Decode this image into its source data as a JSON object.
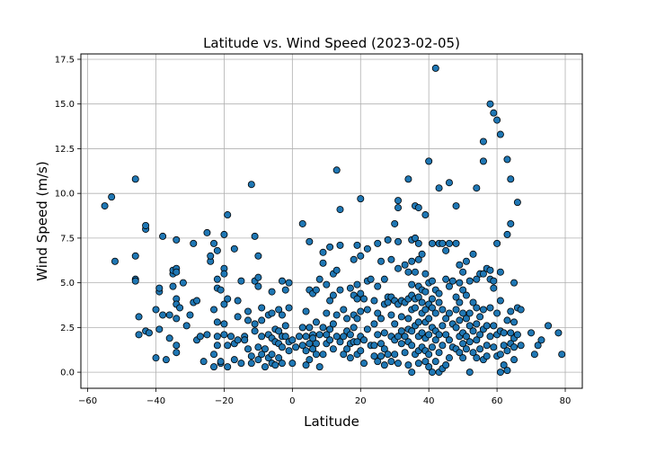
{
  "chart_data": {
    "type": "scatter",
    "title": "Latitude vs. Wind Speed (2023-02-05)",
    "xlabel": "Latitude",
    "ylabel": "Wind Speed (m/s)",
    "xlim": [
      -62,
      85
    ],
    "ylim": [
      -0.9,
      17.8
    ],
    "xticks": [
      -60,
      -40,
      -20,
      0,
      20,
      40,
      60,
      80
    ],
    "yticks": [
      0.0,
      2.5,
      5.0,
      7.5,
      10.0,
      12.5,
      15.0,
      17.5
    ],
    "xtick_labels": [
      "−60",
      "−40",
      "−20",
      "0",
      "20",
      "40",
      "60",
      "80"
    ],
    "ytick_labels": [
      "0.0",
      "2.5",
      "5.0",
      "7.5",
      "10.0",
      "12.5",
      "15.0",
      "17.5"
    ],
    "grid": true,
    "marker_color": "#1f77b4",
    "marker_edge_color": "#000000",
    "points": [
      [
        -55,
        9.3
      ],
      [
        -53,
        9.8
      ],
      [
        -52,
        6.2
      ],
      [
        -46,
        10.8
      ],
      [
        -46,
        6.5
      ],
      [
        -46,
        5.2
      ],
      [
        -46,
        5.1
      ],
      [
        -45,
        3.1
      ],
      [
        -45,
        2.1
      ],
      [
        -43,
        8.0
      ],
      [
        -43,
        8.2
      ],
      [
        -43,
        2.3
      ],
      [
        -42,
        2.2
      ],
      [
        -40,
        3.5
      ],
      [
        -40,
        0.8
      ],
      [
        -39,
        2.4
      ],
      [
        -39,
        4.5
      ],
      [
        -39,
        4.7
      ],
      [
        -38,
        7.6
      ],
      [
        -38,
        3.2
      ],
      [
        -37,
        0.7
      ],
      [
        -36,
        3.2
      ],
      [
        -36,
        1.9
      ],
      [
        -35,
        5.5
      ],
      [
        -35,
        5.7
      ],
      [
        -35,
        4.8
      ],
      [
        -34,
        7.4
      ],
      [
        -34,
        5.8
      ],
      [
        -34,
        5.6
      ],
      [
        -34,
        4.1
      ],
      [
        -34,
        3.8
      ],
      [
        -34,
        3.0
      ],
      [
        -34,
        1.5
      ],
      [
        -34,
        1.1
      ],
      [
        -33,
        3.6
      ],
      [
        -32,
        5.0
      ],
      [
        -31,
        2.6
      ],
      [
        -30,
        3.2
      ],
      [
        -29,
        7.2
      ],
      [
        -29,
        3.9
      ],
      [
        -28,
        4.0
      ],
      [
        -28,
        1.8
      ],
      [
        -27,
        2.0
      ],
      [
        -26,
        0.6
      ],
      [
        -25,
        7.8
      ],
      [
        -25,
        2.1
      ],
      [
        -24,
        6.2
      ],
      [
        -24,
        6.5
      ],
      [
        -23,
        7.2
      ],
      [
        -23,
        1.0
      ],
      [
        -23,
        3.5
      ],
      [
        -23,
        0.3
      ],
      [
        -22,
        6.8
      ],
      [
        -22,
        5.2
      ],
      [
        -22,
        4.7
      ],
      [
        -22,
        2.8
      ],
      [
        -22,
        2.0
      ],
      [
        -22,
        1.5
      ],
      [
        -21,
        4.6
      ],
      [
        -21,
        0.5
      ],
      [
        -21,
        0.6
      ],
      [
        -20,
        7.7
      ],
      [
        -20,
        5.8
      ],
      [
        -20,
        5.5
      ],
      [
        -20,
        3.8
      ],
      [
        -20,
        2.7
      ],
      [
        -20,
        2.1
      ],
      [
        -19,
        8.8
      ],
      [
        -19,
        4.1
      ],
      [
        -19,
        1.5
      ],
      [
        -19,
        0.3
      ],
      [
        -18,
        2.0
      ],
      [
        -17,
        6.9
      ],
      [
        -17,
        1.6
      ],
      [
        -17,
        0.7
      ],
      [
        -16,
        4.0
      ],
      [
        -16,
        3.1
      ],
      [
        -16,
        1.8
      ],
      [
        -15,
        5.1
      ],
      [
        -15,
        0.5
      ],
      [
        -14,
        2.0
      ],
      [
        -14,
        1.8
      ],
      [
        -13,
        3.4
      ],
      [
        -13,
        2.9
      ],
      [
        -13,
        1.3
      ],
      [
        -12,
        10.5
      ],
      [
        -12,
        0.5
      ],
      [
        -12,
        0.9
      ],
      [
        -11,
        7.6
      ],
      [
        -11,
        5.1
      ],
      [
        -11,
        2.7
      ],
      [
        -11,
        2.3
      ],
      [
        -10,
        6.5
      ],
      [
        -10,
        5.3
      ],
      [
        -10,
        4.8
      ],
      [
        -10,
        1.4
      ],
      [
        -10,
        0.7
      ],
      [
        -9,
        3.6
      ],
      [
        -9,
        2.9
      ],
      [
        -9,
        2.0
      ],
      [
        -9,
        1.0
      ],
      [
        -8,
        0.3
      ],
      [
        -8,
        1.3
      ],
      [
        -7,
        3.2
      ],
      [
        -7,
        2.1
      ],
      [
        -7,
        0.8
      ],
      [
        -6,
        4.5
      ],
      [
        -6,
        3.3
      ],
      [
        -6,
        1.9
      ],
      [
        -6,
        1.0
      ],
      [
        -6,
        0.5
      ],
      [
        -5,
        2.4
      ],
      [
        -5,
        1.7
      ],
      [
        -5,
        0.4
      ],
      [
        -4,
        3.5
      ],
      [
        -4,
        2.3
      ],
      [
        -4,
        1.6
      ],
      [
        -4,
        0.8
      ],
      [
        -3,
        5.1
      ],
      [
        -3,
        3.2
      ],
      [
        -3,
        2.0
      ],
      [
        -3,
        1.4
      ],
      [
        -3,
        0.5
      ],
      [
        -2,
        4.6
      ],
      [
        -2,
        2.6
      ],
      [
        -2,
        2.0
      ],
      [
        -1,
        5.0
      ],
      [
        -1,
        3.6
      ],
      [
        -1,
        1.7
      ],
      [
        -1,
        1.2
      ],
      [
        0,
        1.8
      ],
      [
        0,
        0.5
      ],
      [
        1,
        1.4
      ],
      [
        2,
        2.0
      ],
      [
        3,
        8.3
      ],
      [
        3,
        2.5
      ],
      [
        3,
        1.5
      ],
      [
        4,
        3.4
      ],
      [
        4,
        2.0
      ],
      [
        4,
        1.2
      ],
      [
        4,
        0.4
      ],
      [
        5,
        7.3
      ],
      [
        5,
        4.6
      ],
      [
        5,
        2.5
      ],
      [
        5,
        1.6
      ],
      [
        5,
        0.7
      ],
      [
        6,
        4.4
      ],
      [
        6,
        2.1
      ],
      [
        6,
        1.9
      ],
      [
        6,
        1.3
      ],
      [
        7,
        4.6
      ],
      [
        7,
        2.8
      ],
      [
        7,
        1.6
      ],
      [
        7,
        1.0
      ],
      [
        8,
        5.2
      ],
      [
        8,
        2.1
      ],
      [
        8,
        0.3
      ],
      [
        9,
        6.7
      ],
      [
        9,
        6.1
      ],
      [
        9,
        2.5
      ],
      [
        9,
        1.0
      ],
      [
        10,
        4.9
      ],
      [
        10,
        3.3
      ],
      [
        10,
        2.1
      ],
      [
        10,
        1.6
      ],
      [
        11,
        7.0
      ],
      [
        11,
        4.0
      ],
      [
        11,
        2.4
      ],
      [
        11,
        1.8
      ],
      [
        12,
        5.5
      ],
      [
        12,
        4.3
      ],
      [
        12,
        2.7
      ],
      [
        12,
        1.3
      ],
      [
        13,
        11.3
      ],
      [
        13,
        5.7
      ],
      [
        13,
        3.2
      ],
      [
        13,
        2.0
      ],
      [
        14,
        9.1
      ],
      [
        14,
        7.1
      ],
      [
        14,
        4.6
      ],
      [
        14,
        1.7
      ],
      [
        15,
        3.5
      ],
      [
        15,
        2.0
      ],
      [
        15,
        1.0
      ],
      [
        16,
        3.0
      ],
      [
        16,
        2.3
      ],
      [
        16,
        1.3
      ],
      [
        17,
        4.7
      ],
      [
        17,
        2.1
      ],
      [
        17,
        1.6
      ],
      [
        17,
        0.8
      ],
      [
        18,
        6.3
      ],
      [
        18,
        4.3
      ],
      [
        18,
        3.2
      ],
      [
        18,
        2.5
      ],
      [
        18,
        1.7
      ],
      [
        19,
        7.1
      ],
      [
        19,
        4.9
      ],
      [
        19,
        4.1
      ],
      [
        19,
        3.0
      ],
      [
        19,
        1.7
      ],
      [
        19,
        1.0
      ],
      [
        20,
        9.7
      ],
      [
        20,
        6.5
      ],
      [
        20,
        4.4
      ],
      [
        20,
        3.4
      ],
      [
        20,
        2.0
      ],
      [
        20,
        1.2
      ],
      [
        21,
        4.1
      ],
      [
        21,
        1.8
      ],
      [
        21,
        0.5
      ],
      [
        22,
        6.9
      ],
      [
        22,
        5.1
      ],
      [
        22,
        3.5
      ],
      [
        22,
        2.4
      ],
      [
        23,
        5.2
      ],
      [
        23,
        1.5
      ],
      [
        24,
        4.0
      ],
      [
        24,
        2.7
      ],
      [
        24,
        1.5
      ],
      [
        24,
        0.9
      ],
      [
        25,
        7.2
      ],
      [
        25,
        4.8
      ],
      [
        25,
        3.3
      ],
      [
        25,
        2.1
      ],
      [
        25,
        0.6
      ],
      [
        26,
        6.2
      ],
      [
        26,
        3.0
      ],
      [
        26,
        1.6
      ],
      [
        26,
        0.9
      ],
      [
        27,
        5.2
      ],
      [
        27,
        3.8
      ],
      [
        27,
        2.2
      ],
      [
        27,
        1.3
      ],
      [
        27,
        0.4
      ],
      [
        28,
        7.4
      ],
      [
        28,
        4.2
      ],
      [
        28,
        3.9
      ],
      [
        28,
        1.0
      ],
      [
        29,
        6.3
      ],
      [
        29,
        4.2
      ],
      [
        29,
        3.2
      ],
      [
        29,
        2.0
      ],
      [
        29,
        0.6
      ],
      [
        30,
        8.3
      ],
      [
        30,
        4.0
      ],
      [
        30,
        2.7
      ],
      [
        30,
        1.8
      ],
      [
        30,
        1.0
      ],
      [
        31,
        9.2
      ],
      [
        31,
        9.6
      ],
      [
        31,
        7.3
      ],
      [
        31,
        5.8
      ],
      [
        31,
        3.8
      ],
      [
        31,
        2.0
      ],
      [
        31,
        0.5
      ],
      [
        32,
        4.0
      ],
      [
        32,
        3.1
      ],
      [
        32,
        2.3
      ],
      [
        32,
        1.6
      ],
      [
        33,
        6.0
      ],
      [
        33,
        3.9
      ],
      [
        33,
        2.0
      ],
      [
        33,
        1.1
      ],
      [
        34,
        10.8
      ],
      [
        34,
        5.6
      ],
      [
        34,
        4.1
      ],
      [
        34,
        3.0
      ],
      [
        34,
        2.4
      ],
      [
        34,
        1.7
      ],
      [
        34,
        0.4
      ],
      [
        35,
        7.4
      ],
      [
        35,
        6.2
      ],
      [
        35,
        4.9
      ],
      [
        35,
        4.3
      ],
      [
        35,
        3.5
      ],
      [
        35,
        2.3
      ],
      [
        35,
        1.5
      ],
      [
        35,
        0.0
      ],
      [
        36,
        9.3
      ],
      [
        36,
        7.5
      ],
      [
        36,
        5.6
      ],
      [
        36,
        4.1
      ],
      [
        36,
        3.6
      ],
      [
        36,
        2.6
      ],
      [
        36,
        1.0
      ],
      [
        37,
        9.2
      ],
      [
        37,
        7.2
      ],
      [
        37,
        6.3
      ],
      [
        37,
        4.8
      ],
      [
        37,
        4.2
      ],
      [
        37,
        2.8
      ],
      [
        37,
        2.0
      ],
      [
        37,
        1.2
      ],
      [
        37,
        0.5
      ],
      [
        38,
        6.6
      ],
      [
        38,
        4.6
      ],
      [
        38,
        3.9
      ],
      [
        38,
        3.3
      ],
      [
        38,
        2.2
      ],
      [
        38,
        1.4
      ],
      [
        39,
        8.8
      ],
      [
        39,
        5.5
      ],
      [
        39,
        4.5
      ],
      [
        39,
        3.5
      ],
      [
        39,
        2.8
      ],
      [
        39,
        1.9
      ],
      [
        39,
        1.2
      ],
      [
        39,
        0.6
      ],
      [
        40,
        11.8
      ],
      [
        40,
        5.0
      ],
      [
        40,
        3.8
      ],
      [
        40,
        3.0
      ],
      [
        40,
        2.1
      ],
      [
        40,
        1.0
      ],
      [
        40,
        0.3
      ],
      [
        41,
        7.2
      ],
      [
        41,
        5.1
      ],
      [
        41,
        4.1
      ],
      [
        41,
        3.6
      ],
      [
        41,
        2.5
      ],
      [
        41,
        1.4
      ],
      [
        41,
        0.0
      ],
      [
        42,
        17.0
      ],
      [
        42,
        4.6
      ],
      [
        42,
        3.3
      ],
      [
        42,
        2.3
      ],
      [
        42,
        1.8
      ],
      [
        42,
        0.6
      ],
      [
        43,
        10.3
      ],
      [
        43,
        7.2
      ],
      [
        43,
        4.4
      ],
      [
        43,
        3.9
      ],
      [
        43,
        2.1
      ],
      [
        43,
        1.1
      ],
      [
        43,
        0.0
      ],
      [
        44,
        7.2
      ],
      [
        44,
        3.5
      ],
      [
        44,
        2.6
      ],
      [
        44,
        1.5
      ],
      [
        44,
        0.2
      ],
      [
        45,
        6.8
      ],
      [
        45,
        5.2
      ],
      [
        45,
        3.0
      ],
      [
        45,
        2.1
      ],
      [
        45,
        0.4
      ],
      [
        46,
        10.6
      ],
      [
        46,
        7.2
      ],
      [
        46,
        4.8
      ],
      [
        46,
        3.3
      ],
      [
        46,
        1.8
      ],
      [
        46,
        0.8
      ],
      [
        47,
        5.1
      ],
      [
        47,
        2.7
      ],
      [
        47,
        1.4
      ],
      [
        48,
        9.3
      ],
      [
        48,
        7.2
      ],
      [
        48,
        4.2
      ],
      [
        48,
        3.5
      ],
      [
        48,
        2.5
      ],
      [
        48,
        1.3
      ],
      [
        49,
        6.0
      ],
      [
        49,
        5.0
      ],
      [
        49,
        3.9
      ],
      [
        49,
        2.9
      ],
      [
        49,
        2.0
      ],
      [
        49,
        1.1
      ],
      [
        50,
        5.6
      ],
      [
        50,
        4.6
      ],
      [
        50,
        3.3
      ],
      [
        50,
        2.2
      ],
      [
        50,
        1.6
      ],
      [
        50,
        0.8
      ],
      [
        51,
        6.2
      ],
      [
        51,
        4.3
      ],
      [
        51,
        3.0
      ],
      [
        51,
        2.0
      ],
      [
        51,
        1.3
      ],
      [
        52,
        0.0
      ],
      [
        52,
        5.1
      ],
      [
        52,
        3.3
      ],
      [
        52,
        2.6
      ],
      [
        52,
        1.7
      ],
      [
        53,
        6.6
      ],
      [
        53,
        3.9
      ],
      [
        53,
        2.3
      ],
      [
        53,
        1.1
      ],
      [
        54,
        10.3
      ],
      [
        54,
        5.2
      ],
      [
        54,
        3.6
      ],
      [
        54,
        2.7
      ],
      [
        54,
        1.8
      ],
      [
        54,
        0.8
      ],
      [
        55,
        5.5
      ],
      [
        55,
        3.1
      ],
      [
        55,
        2.1
      ],
      [
        55,
        1.3
      ],
      [
        56,
        12.9
      ],
      [
        56,
        11.8
      ],
      [
        56,
        5.5
      ],
      [
        56,
        3.5
      ],
      [
        56,
        2.4
      ],
      [
        56,
        0.7
      ],
      [
        57,
        5.8
      ],
      [
        57,
        2.6
      ],
      [
        57,
        1.5
      ],
      [
        57,
        0.9
      ],
      [
        58,
        15.0
      ],
      [
        58,
        5.7
      ],
      [
        58,
        5.2
      ],
      [
        58,
        3.6
      ],
      [
        58,
        2.0
      ],
      [
        59,
        14.5
      ],
      [
        59,
        5.1
      ],
      [
        59,
        4.7
      ],
      [
        59,
        2.6
      ],
      [
        59,
        1.4
      ],
      [
        60,
        14.1
      ],
      [
        60,
        7.2
      ],
      [
        60,
        3.3
      ],
      [
        60,
        2.1
      ],
      [
        60,
        0.9
      ],
      [
        61,
        13.3
      ],
      [
        61,
        5.6
      ],
      [
        61,
        4.0
      ],
      [
        61,
        2.3
      ],
      [
        61,
        1.0
      ],
      [
        61,
        0.0
      ],
      [
        62,
        2.2
      ],
      [
        62,
        1.5
      ],
      [
        62,
        0.4
      ],
      [
        63,
        11.9
      ],
      [
        63,
        7.7
      ],
      [
        63,
        2.9
      ],
      [
        63,
        1.2
      ],
      [
        63,
        0.1
      ],
      [
        64,
        10.8
      ],
      [
        64,
        8.3
      ],
      [
        64,
        3.4
      ],
      [
        64,
        2.2
      ],
      [
        64,
        1.6
      ],
      [
        65,
        5.0
      ],
      [
        65,
        2.8
      ],
      [
        65,
        1.9
      ],
      [
        65,
        1.4
      ],
      [
        65,
        0.7
      ],
      [
        66,
        9.5
      ],
      [
        66,
        3.6
      ],
      [
        66,
        2.1
      ],
      [
        67,
        3.5
      ],
      [
        67,
        1.5
      ],
      [
        70,
        2.2
      ],
      [
        71,
        1.0
      ],
      [
        72,
        1.5
      ],
      [
        73,
        1.8
      ],
      [
        75,
        2.6
      ],
      [
        78,
        2.2
      ],
      [
        79,
        1.0
      ]
    ]
  }
}
